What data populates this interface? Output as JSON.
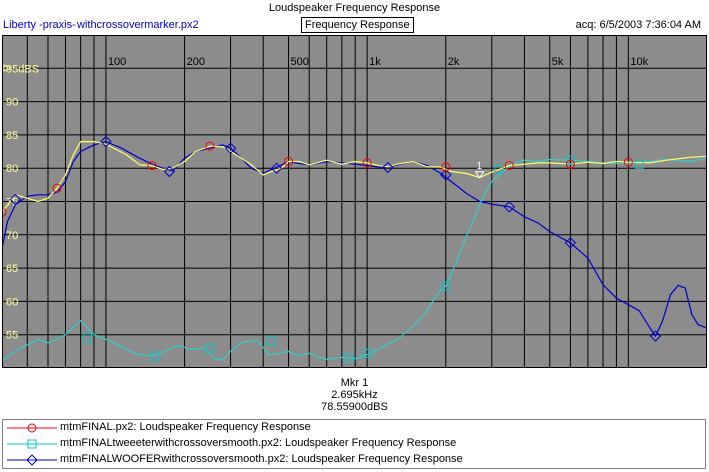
{
  "header": {
    "title": "Loudspeaker Frequency Response",
    "app_name": "Liberty -praxis-",
    "file_name": "withcrossovermarker.px2",
    "view_label": "Frequency Response",
    "acq": "acq: 6/5/2003 7:36:04 AM"
  },
  "marker": {
    "title": "Mkr 1",
    "freq": "2.695kHz",
    "level": "78.55900dBS"
  },
  "legend": [
    {
      "label": "mtmFINAL.px2:  Loudspeaker Frequency Response",
      "color": "#ff0000",
      "marker": "circle"
    },
    {
      "label": "mtmFINALtweeeterwithcrossoversmooth.px2:  Loudspeaker Frequency Response",
      "color": "#00c8c8",
      "marker": "square"
    },
    {
      "label": "mtmFINALWOOFERwithcrossoversmooth.px2:  Loudspeaker Frequency Response",
      "color": "#0000c8",
      "marker": "diamond"
    }
  ],
  "chart_data": {
    "type": "line",
    "x_scale": "log",
    "xlim": [
      40,
      20000
    ],
    "ylim": [
      50,
      100
    ],
    "y_unit": "dBS",
    "x_ticks": [
      {
        "v": 100,
        "label": "100"
      },
      {
        "v": 200,
        "label": "200"
      },
      {
        "v": 500,
        "label": "500"
      },
      {
        "v": 1000,
        "label": "1k"
      },
      {
        "v": 2000,
        "label": "2k"
      },
      {
        "v": 5000,
        "label": "5k"
      },
      {
        "v": 10000,
        "label": "10k"
      }
    ],
    "y_ticks": [
      {
        "v": 55,
        "label": "55"
      },
      {
        "v": 60,
        "label": "60"
      },
      {
        "v": 65,
        "label": "65"
      },
      {
        "v": 70,
        "label": "70"
      },
      {
        "v": 75,
        "label": "75"
      },
      {
        "v": 80,
        "label": "80"
      },
      {
        "v": 85,
        "label": "85"
      },
      {
        "v": 90,
        "label": "90"
      },
      {
        "v": 95,
        "label": "95dBS"
      }
    ],
    "plot_background": "#8c8c8c",
    "grid": true,
    "marker_point": {
      "label": "1",
      "x": 2695,
      "y": 78.559
    },
    "series": [
      {
        "name": "mtmFINAL.px2:  Loudspeaker Frequency Response",
        "color": "#ffff66",
        "marker_color": "#ff0000",
        "marker": "circle",
        "points": [
          [
            40,
            73.4
          ],
          [
            45,
            76
          ],
          [
            50,
            75.5
          ],
          [
            55,
            75
          ],
          [
            60,
            75.5
          ],
          [
            65,
            77
          ],
          [
            70,
            79
          ],
          [
            75,
            82
          ],
          [
            80,
            84
          ],
          [
            90,
            84
          ],
          [
            100,
            83.6
          ],
          [
            120,
            82
          ],
          [
            135,
            80.5
          ],
          [
            150,
            80.4
          ],
          [
            165,
            79.8
          ],
          [
            180,
            80
          ],
          [
            200,
            81
          ],
          [
            220,
            82.5
          ],
          [
            250,
            83.3
          ],
          [
            280,
            83.2
          ],
          [
            300,
            82.5
          ],
          [
            330,
            81.5
          ],
          [
            360,
            80.5
          ],
          [
            400,
            79
          ],
          [
            430,
            79.5
          ],
          [
            470,
            80
          ],
          [
            500,
            81
          ],
          [
            550,
            81
          ],
          [
            600,
            80.5
          ],
          [
            700,
            81.2
          ],
          [
            800,
            80.6
          ],
          [
            900,
            81
          ],
          [
            1000,
            80.8
          ],
          [
            1100,
            80.4
          ],
          [
            1200,
            80.2
          ],
          [
            1300,
            80.6
          ],
          [
            1500,
            81
          ],
          [
            1700,
            80.2
          ],
          [
            1900,
            80.2
          ],
          [
            2100,
            79.5
          ],
          [
            2400,
            79.2
          ],
          [
            2695,
            78.6
          ],
          [
            3000,
            79.4
          ],
          [
            3500,
            80.4
          ],
          [
            4000,
            80.6
          ],
          [
            4500,
            80.8
          ],
          [
            5000,
            80.8
          ],
          [
            6000,
            80.6
          ],
          [
            7000,
            80.9
          ],
          [
            8000,
            80.7
          ],
          [
            9000,
            81
          ],
          [
            10000,
            80.9
          ],
          [
            12000,
            80.8
          ],
          [
            14000,
            81.2
          ],
          [
            17000,
            81.6
          ],
          [
            20000,
            81.8
          ]
        ],
        "markers_at": [
          [
            40,
            73.4
          ],
          [
            65,
            77
          ],
          [
            150,
            80.4
          ],
          [
            250,
            83.3
          ],
          [
            500,
            81
          ],
          [
            1000,
            80.8
          ],
          [
            2000,
            80.2
          ],
          [
            3500,
            80.4
          ],
          [
            6000,
            80.6
          ],
          [
            10000,
            80.9
          ]
        ]
      },
      {
        "name": "mtmFINALtweeeterwithcrossoversmooth.px2:  Loudspeaker Frequency Response",
        "color": "#33cccc",
        "marker_color": "#00c8c8",
        "marker": "square",
        "points": [
          [
            40,
            51
          ],
          [
            45,
            52.5
          ],
          [
            50,
            53.5
          ],
          [
            55,
            54.3
          ],
          [
            60,
            53.8
          ],
          [
            65,
            54.3
          ],
          [
            70,
            55
          ],
          [
            80,
            57.1
          ],
          [
            90,
            55
          ],
          [
            100,
            54.3
          ],
          [
            115,
            53.2
          ],
          [
            130,
            52.1
          ],
          [
            150,
            51.8
          ],
          [
            170,
            52.6
          ],
          [
            190,
            53.4
          ],
          [
            210,
            52.8
          ],
          [
            240,
            53
          ],
          [
            260,
            51.5
          ],
          [
            280,
            51.2
          ],
          [
            300,
            52.5
          ],
          [
            330,
            53.8
          ],
          [
            380,
            54.2
          ],
          [
            420,
            52
          ],
          [
            460,
            52.2
          ],
          [
            500,
            52.5
          ],
          [
            550,
            51.8
          ],
          [
            600,
            52.2
          ],
          [
            700,
            51.3
          ],
          [
            800,
            51.6
          ],
          [
            900,
            51.4
          ],
          [
            1000,
            52
          ],
          [
            1100,
            52.7
          ],
          [
            1200,
            53.6
          ],
          [
            1300,
            54.2
          ],
          [
            1400,
            55.3
          ],
          [
            1500,
            56.2
          ],
          [
            1600,
            57.5
          ],
          [
            1700,
            58.7
          ],
          [
            1800,
            60.3
          ],
          [
            1900,
            61.5
          ],
          [
            2000,
            62.3
          ],
          [
            2200,
            66
          ],
          [
            2400,
            69.8
          ],
          [
            2600,
            73
          ],
          [
            2800,
            76
          ],
          [
            3000,
            78
          ],
          [
            3300,
            79.5
          ],
          [
            3600,
            80.6
          ],
          [
            4000,
            81.2
          ],
          [
            4500,
            81
          ],
          [
            5000,
            81.3
          ],
          [
            6000,
            81.2
          ],
          [
            7000,
            81
          ],
          [
            8000,
            80.8
          ],
          [
            10000,
            80.6
          ],
          [
            12000,
            81
          ],
          [
            14000,
            81.3
          ],
          [
            17000,
            81
          ],
          [
            20000,
            81.5
          ]
        ],
        "markers_at": [
          [
            85,
            54.5
          ],
          [
            155,
            51.8
          ],
          [
            250,
            53
          ],
          [
            430,
            54
          ],
          [
            850,
            51.5
          ],
          [
            1000,
            52.2
          ],
          [
            2000,
            62.3
          ],
          [
            3200,
            79.8
          ],
          [
            6000,
            81.2
          ],
          [
            11000,
            80.6
          ]
        ]
      },
      {
        "name": "mtmFINALWOOFERwithcrossoversmooth.px2:  Loudspeaker Frequency Response",
        "color": "#0000cc",
        "marker_color": "#0000c8",
        "marker": "diamond",
        "points": [
          [
            40,
            68
          ],
          [
            42,
            72
          ],
          [
            45,
            74.5
          ],
          [
            50,
            75.8
          ],
          [
            55,
            76
          ],
          [
            60,
            76
          ],
          [
            65,
            76.4
          ],
          [
            70,
            78
          ],
          [
            75,
            81
          ],
          [
            80,
            82.5
          ],
          [
            90,
            83.5
          ],
          [
            100,
            84
          ],
          [
            115,
            83
          ],
          [
            130,
            81.8
          ],
          [
            150,
            80.6
          ],
          [
            165,
            80
          ],
          [
            180,
            79.6
          ],
          [
            200,
            81.5
          ],
          [
            220,
            82.5
          ],
          [
            250,
            83
          ],
          [
            280,
            83.5
          ],
          [
            300,
            83
          ],
          [
            330,
            81.5
          ],
          [
            360,
            80
          ],
          [
            400,
            79.2
          ],
          [
            430,
            79.8
          ],
          [
            470,
            80.5
          ],
          [
            500,
            81
          ],
          [
            550,
            80.7
          ],
          [
            600,
            80.5
          ],
          [
            700,
            81
          ],
          [
            800,
            80.8
          ],
          [
            900,
            80.6
          ],
          [
            1000,
            80.4
          ],
          [
            1100,
            80.2
          ],
          [
            1200,
            80.1
          ],
          [
            1300,
            80.5
          ],
          [
            1500,
            81
          ],
          [
            1700,
            80.4
          ],
          [
            1900,
            79.3
          ],
          [
            2100,
            78
          ],
          [
            2400,
            76.2
          ],
          [
            2700,
            75
          ],
          [
            3000,
            74.6
          ],
          [
            3500,
            74.2
          ],
          [
            4000,
            72.7
          ],
          [
            4500,
            71.8
          ],
          [
            5000,
            70.5
          ],
          [
            5500,
            69.6
          ],
          [
            6000,
            68.8
          ],
          [
            7000,
            66.5
          ],
          [
            8000,
            62.5
          ],
          [
            9000,
            60.5
          ],
          [
            10000,
            59.5
          ],
          [
            11000,
            58.6
          ],
          [
            12000,
            56.2
          ],
          [
            12700,
            54.8
          ],
          [
            13500,
            57
          ],
          [
            14500,
            61
          ],
          [
            15500,
            62.4
          ],
          [
            16500,
            62
          ],
          [
            17500,
            58
          ],
          [
            18500,
            56.5
          ],
          [
            20000,
            56
          ]
        ],
        "markers_at": [
          [
            45,
            75.3
          ],
          [
            100,
            84
          ],
          [
            175,
            79.5
          ],
          [
            300,
            83
          ],
          [
            450,
            80
          ],
          [
            1200,
            80.1
          ],
          [
            2000,
            79
          ],
          [
            3500,
            74.2
          ],
          [
            6000,
            68.8
          ],
          [
            12700,
            54.8
          ]
        ]
      }
    ]
  }
}
